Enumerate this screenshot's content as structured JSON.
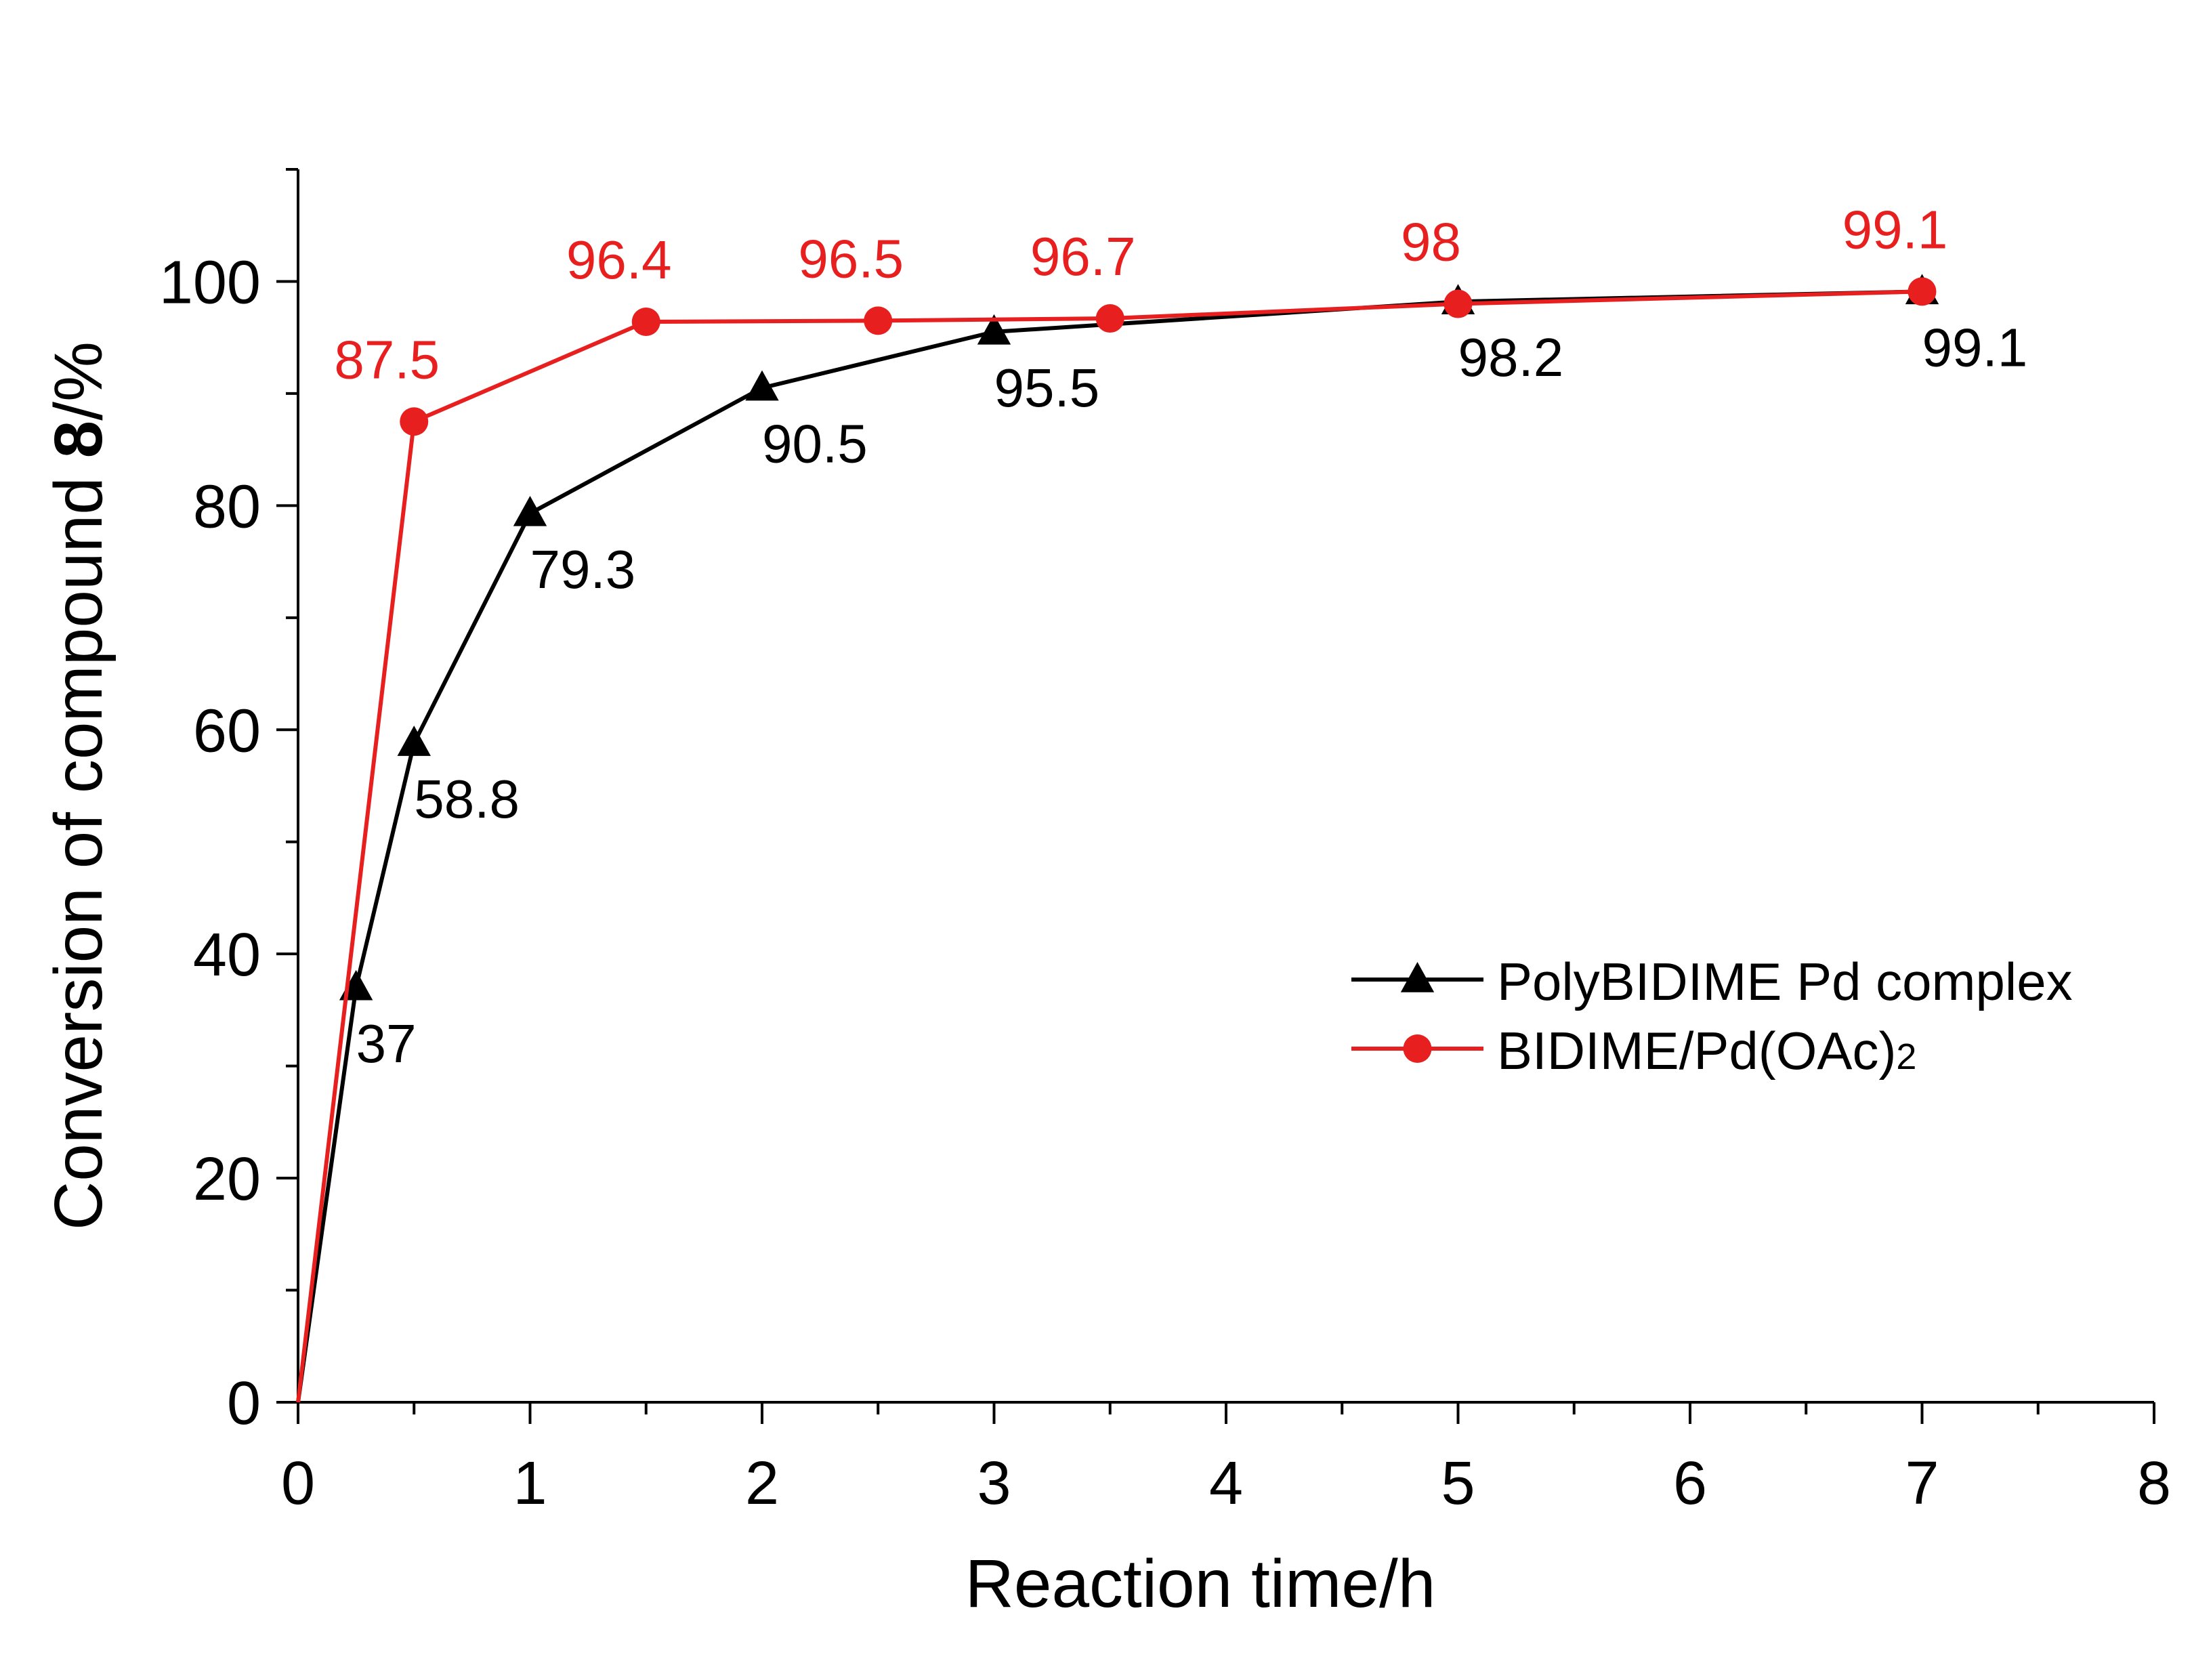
{
  "chart_data": {
    "type": "line",
    "title": "",
    "xlabel": "Reaction time/h",
    "ylabel": {
      "prefix": "Conversion of compound ",
      "bold": "8",
      "suffix": "/%"
    },
    "xlim": [
      0,
      8
    ],
    "ylim": [
      0,
      110
    ],
    "x_ticks": [
      0,
      1,
      2,
      3,
      4,
      5,
      6,
      7,
      8
    ],
    "y_ticks": [
      0,
      20,
      40,
      60,
      80,
      100
    ],
    "grid": false,
    "legend_position": "center-right",
    "series": [
      {
        "name": "PolyBIDIME Pd complex",
        "color": "#000000",
        "marker": "triangle",
        "label_position": "below-right",
        "x": [
          0,
          0.25,
          0.5,
          1,
          2,
          3,
          5,
          7
        ],
        "y": [
          0,
          37,
          58.8,
          79.3,
          90.5,
          95.5,
          98.2,
          99.1
        ],
        "labels": [
          "",
          "37",
          "58.8",
          "79.3",
          "90.5",
          "95.5",
          "98.2",
          "99.1"
        ]
      },
      {
        "name": "BIDIME/Pd(OAc)2",
        "name_main": "BIDIME/Pd(OAc)",
        "name_sub": "2",
        "color": "#e81f1f",
        "marker": "circle",
        "label_position": "above",
        "x": [
          0,
          0.5,
          1.5,
          2.5,
          3.5,
          5,
          7
        ],
        "y": [
          0,
          87.5,
          96.4,
          96.5,
          96.7,
          98,
          99.1
        ],
        "labels": [
          "",
          "87.5",
          "96.4",
          "96.5",
          "96.7",
          "98",
          "99.1"
        ]
      }
    ]
  }
}
